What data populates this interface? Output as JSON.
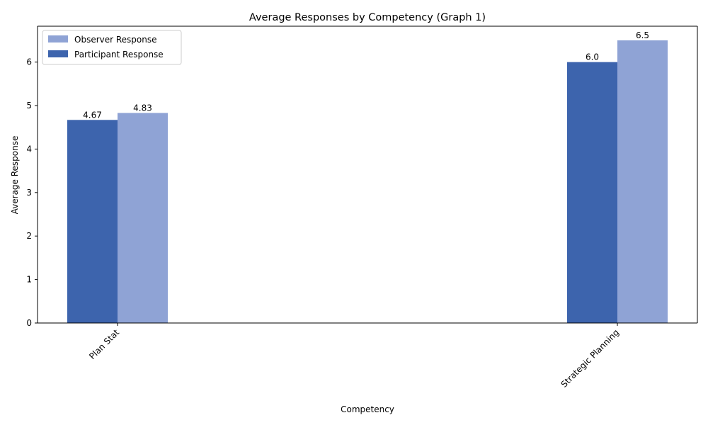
{
  "chart_data": {
    "type": "bar",
    "title": "Average Responses by Competency (Graph 1)",
    "xlabel": "Competency",
    "ylabel": "Average Response",
    "categories": [
      "Plan Stat",
      "Strategic Planning"
    ],
    "series": [
      {
        "name": "Participant Response",
        "values": [
          4.67,
          6.0
        ],
        "labels": [
          "4.67",
          "6.0"
        ],
        "color": "#3d64ad"
      },
      {
        "name": "Observer Response",
        "values": [
          4.83,
          6.5
        ],
        "labels": [
          "4.83",
          "6.5"
        ],
        "color": "#8fa3d5"
      }
    ],
    "legend_order": [
      "Observer Response",
      "Participant Response"
    ],
    "legend_position": "top-left",
    "ylim": [
      0,
      6.825
    ],
    "yticks": [
      "0",
      "1",
      "2",
      "3",
      "4",
      "5",
      "6"
    ],
    "grid": false
  }
}
